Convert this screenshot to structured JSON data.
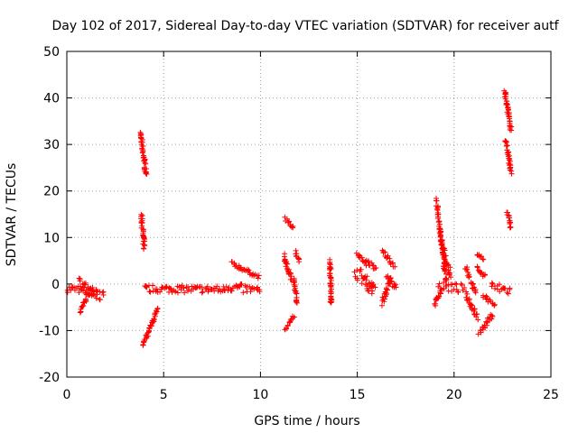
{
  "chart_data": {
    "type": "scatter",
    "title": "Day 102 of 2017, Sidereal Day-to-day VTEC variation (SDTVAR) for receiver autf",
    "xlabel": "GPS time / hours",
    "ylabel": "SDTVAR / TECUs",
    "xlim": [
      0,
      25
    ],
    "ylim": [
      -20,
      50
    ],
    "xticks": [
      0,
      5,
      10,
      15,
      20,
      25
    ],
    "yticks": [
      -20,
      -10,
      0,
      10,
      20,
      30,
      40,
      50
    ],
    "grid": true,
    "marker": "+",
    "series_color": "#ff0000",
    "arcs": [
      {
        "x": [
          0.0,
          1.6
        ],
        "y": [
          -1.0,
          -1.5
        ],
        "spread": 0.8
      },
      {
        "x": [
          0.7,
          1.1
        ],
        "y": [
          -6.0,
          -2.0
        ],
        "spread": 0.5
      },
      {
        "x": [
          0.6,
          1.9
        ],
        "y": [
          0.3,
          -3.0
        ],
        "spread": 1.2
      },
      {
        "x": [
          3.8,
          4.1
        ],
        "y": [
          32.5,
          23.5
        ],
        "spread": 0.4
      },
      {
        "x": [
          3.85,
          4.0
        ],
        "y": [
          15.0,
          7.5
        ],
        "spread": 0.3
      },
      {
        "x": [
          3.9,
          4.7
        ],
        "y": [
          -13.5,
          -5.5
        ],
        "spread": 0.4
      },
      {
        "x": [
          4.0,
          8.2
        ],
        "y": [
          -1.0,
          -1.2
        ],
        "spread": 0.8
      },
      {
        "x": [
          8.2,
          10.0
        ],
        "y": [
          -0.5,
          -1.5
        ],
        "spread": 1.0
      },
      {
        "x": [
          8.5,
          9.9
        ],
        "y": [
          4.5,
          1.5
        ],
        "spread": 0.4
      },
      {
        "x": [
          11.3,
          11.7
        ],
        "y": [
          14.0,
          12.0
        ],
        "spread": 0.4
      },
      {
        "x": [
          11.2,
          11.6
        ],
        "y": [
          6.0,
          1.0
        ],
        "spread": 0.6
      },
      {
        "x": [
          11.3,
          11.7
        ],
        "y": [
          -9.5,
          -7.0
        ],
        "spread": 0.4
      },
      {
        "x": [
          11.7,
          11.9
        ],
        "y": [
          1.0,
          -4.0
        ],
        "spread": 0.4
      },
      {
        "x": [
          11.8,
          12.0
        ],
        "y": [
          7.0,
          5.0
        ],
        "spread": 0.3
      },
      {
        "x": [
          13.6,
          13.65
        ],
        "y": [
          5.0,
          -4.5
        ],
        "spread": 0.6
      },
      {
        "x": [
          14.9,
          15.8
        ],
        "y": [
          3.0,
          -1.0
        ],
        "spread": 1.5
      },
      {
        "x": [
          15.0,
          15.5
        ],
        "y": [
          6.5,
          4.0
        ],
        "spread": 0.4
      },
      {
        "x": [
          15.5,
          16.0
        ],
        "y": [
          5.0,
          3.0
        ],
        "spread": 0.5
      },
      {
        "x": [
          15.4,
          15.9
        ],
        "y": [
          0.5,
          -1.0
        ],
        "spread": 0.8
      },
      {
        "x": [
          16.3,
          16.9
        ],
        "y": [
          7.0,
          4.0
        ],
        "spread": 0.5
      },
      {
        "x": [
          16.3,
          16.7
        ],
        "y": [
          -4.0,
          1.0
        ],
        "spread": 0.8
      },
      {
        "x": [
          16.5,
          17.0
        ],
        "y": [
          2.0,
          -1.0
        ],
        "spread": 0.6
      },
      {
        "x": [
          19.1,
          19.6
        ],
        "y": [
          17.5,
          0.5
        ],
        "spread": 0.9
      },
      {
        "x": [
          19.3,
          19.8
        ],
        "y": [
          9.0,
          2.0
        ],
        "spread": 0.9
      },
      {
        "x": [
          19.0,
          19.3
        ],
        "y": [
          -4.5,
          -1.5
        ],
        "spread": 0.4
      },
      {
        "x": [
          19.2,
          20.5
        ],
        "y": [
          -0.5,
          -1.0
        ],
        "spread": 1.0
      },
      {
        "x": [
          20.6,
          20.8
        ],
        "y": [
          3.5,
          1.5
        ],
        "spread": 0.4
      },
      {
        "x": [
          20.6,
          21.2
        ],
        "y": [
          -2.0,
          -7.0
        ],
        "spread": 0.8
      },
      {
        "x": [
          20.9,
          21.1
        ],
        "y": [
          0.5,
          -2.0
        ],
        "spread": 0.4
      },
      {
        "x": [
          21.2,
          21.6
        ],
        "y": [
          3.5,
          1.5
        ],
        "spread": 0.4
      },
      {
        "x": [
          21.2,
          21.5
        ],
        "y": [
          6.5,
          5.5
        ],
        "spread": 0.3
      },
      {
        "x": [
          21.3,
          22.0
        ],
        "y": [
          -10.5,
          -6.5
        ],
        "spread": 0.6
      },
      {
        "x": [
          21.5,
          22.1
        ],
        "y": [
          -2.5,
          -4.5
        ],
        "spread": 0.5
      },
      {
        "x": [
          21.9,
          22.9
        ],
        "y": [
          -0.5,
          -1.5
        ],
        "spread": 1.0
      },
      {
        "x": [
          22.6,
          22.95
        ],
        "y": [
          41.5,
          33.0
        ],
        "spread": 0.4
      },
      {
        "x": [
          22.65,
          22.95
        ],
        "y": [
          31.0,
          24.0
        ],
        "spread": 0.4
      },
      {
        "x": [
          22.75,
          22.95
        ],
        "y": [
          15.5,
          12.0
        ],
        "spread": 0.3
      }
    ]
  }
}
